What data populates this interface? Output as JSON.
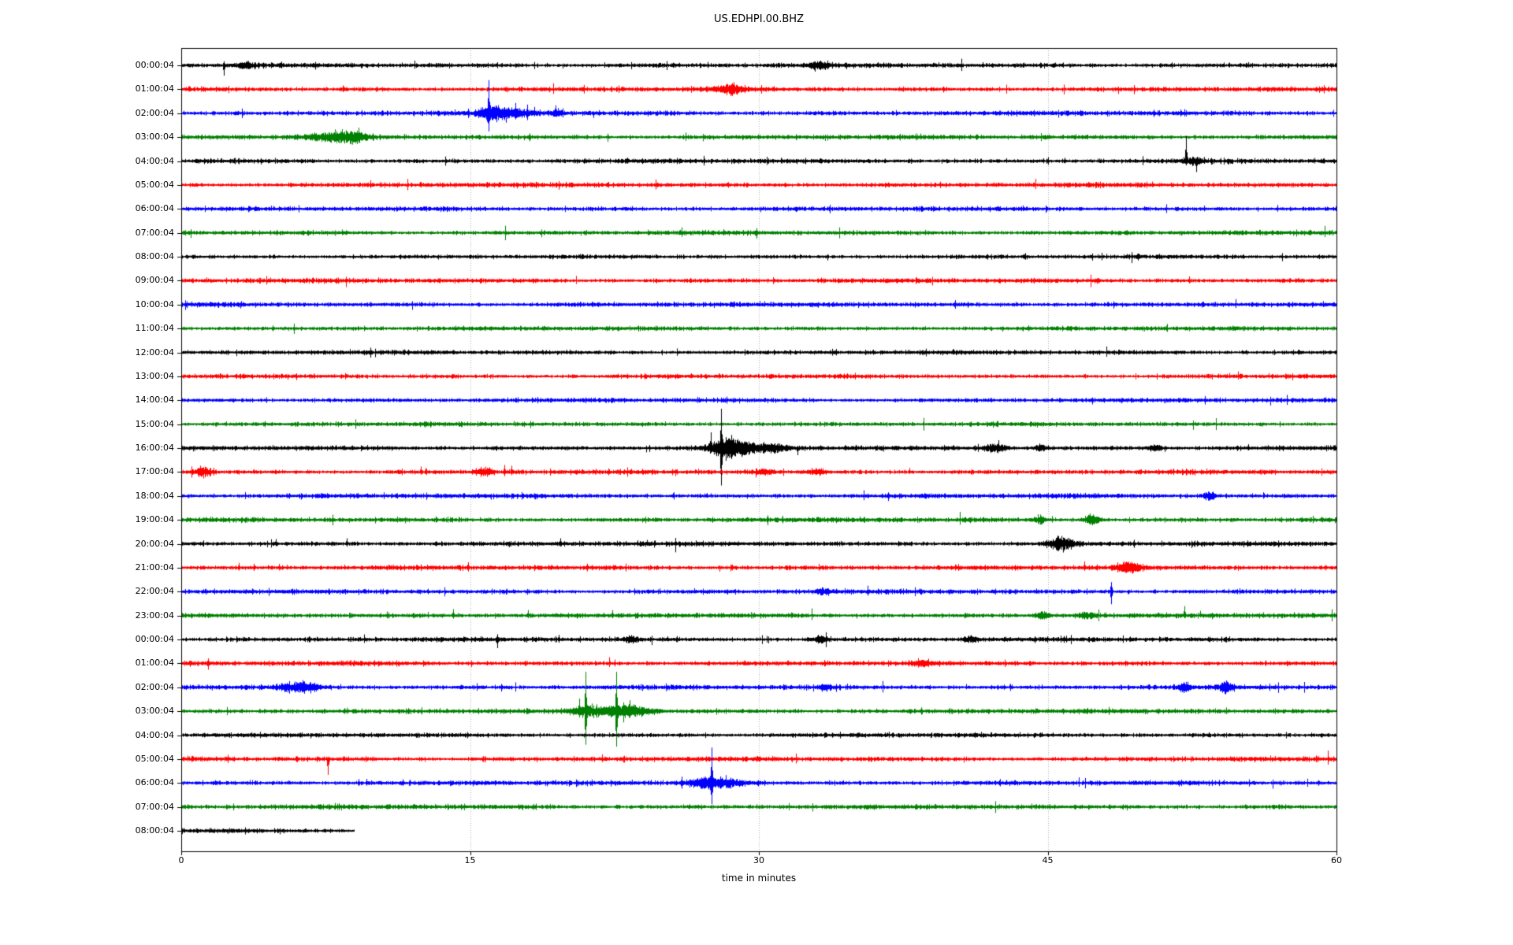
{
  "chart_data": {
    "type": "line",
    "subtype": "seismogram-helicorder",
    "title": "US.EDHPI.00.BHZ",
    "xlabel": "time in minutes",
    "x_range_minutes": [
      0,
      60
    ],
    "x_ticks": [
      0,
      15,
      30,
      45,
      60
    ],
    "x_tick_labels": [
      "0",
      "15",
      "30",
      "45",
      "60"
    ],
    "gridlines_minutes": [
      15,
      30,
      45
    ],
    "grid_color": "#ababab",
    "axis_color": "#000000",
    "trace_color_cycle": [
      "#000000",
      "#ff0000",
      "#0000ff",
      "#008000"
    ],
    "row_spacing_hours": 1,
    "rows": [
      {
        "label": "00:00:04",
        "color": "#000000",
        "noise": 3.0,
        "end_min": 60,
        "events": [
          {
            "t": "spike",
            "m": 2.2,
            "a": -13,
            "dn": 0.4
          },
          {
            "t": "burst",
            "m": 3.3,
            "a": 4,
            "d": 0.5
          },
          {
            "t": "burst",
            "m": 33.1,
            "a": 5,
            "d": 0.8
          },
          {
            "t": "spike",
            "m": 36.2,
            "a": 4,
            "dn": 0.5
          }
        ]
      },
      {
        "label": "01:00:04",
        "color": "#ff0000",
        "noise": 3.0,
        "end_min": 60,
        "events": [
          {
            "t": "burst",
            "m": 28.5,
            "a": 7,
            "d": 1.0
          },
          {
            "t": "spike",
            "m": 28.7,
            "a": 9,
            "dn": 0.6
          }
        ]
      },
      {
        "label": "02:00:04",
        "color": "#0000ff",
        "noise": 3.0,
        "end_min": 60,
        "events": [
          {
            "t": "spike",
            "m": 15.95,
            "a": 42,
            "dn": 0.55
          },
          {
            "t": "burst",
            "m": 16.1,
            "a": 10,
            "d": 0.8
          },
          {
            "t": "burst",
            "m": 17.2,
            "a": 6,
            "d": 1.5
          },
          {
            "t": "spike",
            "m": 16.85,
            "a": -12,
            "dn": 0.5
          },
          {
            "t": "spike",
            "m": 17.35,
            "a": 13,
            "dn": 0.6
          },
          {
            "t": "spike",
            "m": 17.95,
            "a": 11,
            "dn": 0.8
          },
          {
            "t": "spike",
            "m": 18.35,
            "a": 8,
            "dn": 0.5
          },
          {
            "t": "spike",
            "m": 19.45,
            "a": 10,
            "dn": 0.4
          },
          {
            "t": "burst",
            "m": 19.5,
            "a": 4,
            "d": 0.6
          },
          {
            "t": "spike",
            "m": 21.4,
            "a": -6,
            "dn": 0.4
          }
        ]
      },
      {
        "label": "03:00:04",
        "color": "#008000",
        "noise": 3.0,
        "end_min": 60,
        "events": [
          {
            "t": "burst",
            "m": 7.6,
            "a": 5,
            "d": 1.6
          },
          {
            "t": "burst",
            "m": 8.9,
            "a": 6,
            "d": 1.2
          },
          {
            "t": "spike",
            "m": 6.9,
            "a": 6,
            "dn": 0.5
          },
          {
            "t": "spike",
            "m": 8.35,
            "a": 10,
            "dn": 0.5
          },
          {
            "t": "spike",
            "m": 9.2,
            "a": 12,
            "dn": 0.6
          }
        ]
      },
      {
        "label": "04:00:04",
        "color": "#000000",
        "noise": 3.0,
        "end_min": 60,
        "events": [
          {
            "t": "spike",
            "m": 52.2,
            "a": 32,
            "dn": 0.15
          },
          {
            "t": "spike",
            "m": 52.7,
            "a": -14,
            "dn": 0.2
          },
          {
            "t": "burst",
            "m": 52.5,
            "a": 4,
            "d": 0.8
          }
        ]
      },
      {
        "label": "05:00:04",
        "color": "#ff0000",
        "noise": 3.0,
        "end_min": 60,
        "events": []
      },
      {
        "label": "06:00:04",
        "color": "#0000ff",
        "noise": 2.9,
        "end_min": 60,
        "events": []
      },
      {
        "label": "07:00:04",
        "color": "#008000",
        "noise": 2.9,
        "end_min": 60,
        "events": []
      },
      {
        "label": "08:00:04",
        "color": "#000000",
        "noise": 2.6,
        "end_min": 60,
        "events": []
      },
      {
        "label": "09:00:04",
        "color": "#ff0000",
        "noise": 3.0,
        "end_min": 60,
        "events": []
      },
      {
        "label": "10:00:04",
        "color": "#0000ff",
        "noise": 3.0,
        "end_min": 60,
        "events": []
      },
      {
        "label": "11:00:04",
        "color": "#008000",
        "noise": 2.8,
        "end_min": 60,
        "events": []
      },
      {
        "label": "12:00:04",
        "color": "#000000",
        "noise": 2.8,
        "end_min": 60,
        "events": []
      },
      {
        "label": "13:00:04",
        "color": "#ff0000",
        "noise": 2.8,
        "end_min": 60,
        "events": []
      },
      {
        "label": "14:00:04",
        "color": "#0000ff",
        "noise": 2.8,
        "end_min": 60,
        "events": []
      },
      {
        "label": "15:00:04",
        "color": "#008000",
        "noise": 2.8,
        "end_min": 60,
        "events": []
      },
      {
        "label": "16:00:04",
        "color": "#000000",
        "noise": 3.0,
        "end_min": 60,
        "events": [
          {
            "t": "spike",
            "m": 27.5,
            "a": 20,
            "dn": 0.3
          },
          {
            "t": "spike",
            "m": 28.05,
            "a": 50,
            "dn": 0.95
          },
          {
            "t": "burst",
            "m": 28.3,
            "a": 12,
            "d": 1.2
          },
          {
            "t": "spike",
            "m": 28.6,
            "a": 10,
            "dn": 0.8
          },
          {
            "t": "burst",
            "m": 29.3,
            "a": 6,
            "d": 2.0
          },
          {
            "t": "burst",
            "m": 30.9,
            "a": 4,
            "d": 0.8
          },
          {
            "t": "spike",
            "m": 32.0,
            "a": -9,
            "dn": 0.3
          },
          {
            "t": "burst",
            "m": 42.3,
            "a": 6,
            "d": 0.8
          },
          {
            "t": "spike",
            "m": 42.45,
            "a": 10,
            "dn": 0.4
          },
          {
            "t": "burst",
            "m": 44.6,
            "a": 4,
            "d": 0.5
          },
          {
            "t": "burst",
            "m": 50.6,
            "a": 4,
            "d": 0.6
          },
          {
            "t": "spike",
            "m": 55.4,
            "a": 5,
            "dn": 0.5
          }
        ]
      },
      {
        "label": "17:00:04",
        "color": "#ff0000",
        "noise": 3.0,
        "end_min": 60,
        "events": [
          {
            "t": "burst",
            "m": 1.1,
            "a": 7,
            "d": 0.6
          },
          {
            "t": "spike",
            "m": 1.0,
            "a": 8,
            "dn": 0.6
          },
          {
            "t": "spike",
            "m": 12.45,
            "a": 7,
            "dn": 0.5
          },
          {
            "t": "spike",
            "m": 12.7,
            "a": 5,
            "dn": 0.5
          },
          {
            "t": "burst",
            "m": 15.7,
            "a": 6,
            "d": 0.6
          },
          {
            "t": "spike",
            "m": 16.8,
            "a": 9,
            "dn": 0.6
          },
          {
            "t": "spike",
            "m": 17.15,
            "a": 8,
            "dn": 0.5
          },
          {
            "t": "burst",
            "m": 30.3,
            "a": 4,
            "d": 0.6
          },
          {
            "t": "burst",
            "m": 33.0,
            "a": 3.5,
            "d": 0.6
          },
          {
            "t": "spike",
            "m": 37.8,
            "a": 5,
            "dn": 0.5
          }
        ]
      },
      {
        "label": "18:00:04",
        "color": "#0000ff",
        "noise": 3.0,
        "end_min": 60,
        "events": [
          {
            "t": "burst",
            "m": 53.4,
            "a": 6,
            "d": 0.4
          }
        ]
      },
      {
        "label": "19:00:04",
        "color": "#008000",
        "noise": 3.0,
        "end_min": 60,
        "events": [
          {
            "t": "burst",
            "m": 44.6,
            "a": 6,
            "d": 0.4
          },
          {
            "t": "burst",
            "m": 47.3,
            "a": 8,
            "d": 0.5
          }
        ]
      },
      {
        "label": "20:00:04",
        "color": "#000000",
        "noise": 3.0,
        "end_min": 60,
        "events": [
          {
            "t": "spike",
            "m": 4.9,
            "a": 6,
            "dn": 0.5
          },
          {
            "t": "spike",
            "m": 8.6,
            "a": 7,
            "dn": 0.5
          },
          {
            "t": "spike",
            "m": 19.7,
            "a": 7,
            "dn": 0.5
          },
          {
            "t": "spike",
            "m": 24.2,
            "a": 5,
            "dn": 0.5
          },
          {
            "t": "burst",
            "m": 45.7,
            "a": 10,
            "d": 0.9
          }
        ]
      },
      {
        "label": "21:00:04",
        "color": "#ff0000",
        "noise": 3.0,
        "end_min": 60,
        "events": [
          {
            "t": "spike",
            "m": 3.0,
            "a": 6,
            "dn": 0.6
          },
          {
            "t": "spike",
            "m": 14.9,
            "a": 7,
            "dn": 0.7
          },
          {
            "t": "spike",
            "m": 46.9,
            "a": 8,
            "dn": 0.5
          },
          {
            "t": "burst",
            "m": 49.2,
            "a": 7,
            "d": 0.9
          }
        ]
      },
      {
        "label": "22:00:04",
        "color": "#0000ff",
        "noise": 3.0,
        "end_min": 60,
        "events": [
          {
            "t": "burst",
            "m": 33.3,
            "a": 4,
            "d": 0.4
          },
          {
            "t": "spike",
            "m": 48.3,
            "a": -16,
            "dn": 0.75
          }
        ]
      },
      {
        "label": "23:00:04",
        "color": "#008000",
        "noise": 3.0,
        "end_min": 60,
        "events": [
          {
            "t": "spike",
            "m": 14.1,
            "a": 8,
            "dn": 0.5
          },
          {
            "t": "spike",
            "m": 18.0,
            "a": 7,
            "dn": 0.5
          },
          {
            "t": "spike",
            "m": 22.4,
            "a": 7,
            "dn": 0.5
          },
          {
            "t": "burst",
            "m": 44.7,
            "a": 5,
            "d": 0.5
          },
          {
            "t": "burst",
            "m": 47.0,
            "a": 4,
            "d": 0.7
          },
          {
            "t": "spike",
            "m": 52.1,
            "a": 12,
            "dn": 0.3
          },
          {
            "t": "spike",
            "m": 52.9,
            "a": 6,
            "dn": 0.4
          }
        ]
      },
      {
        "label": "00:00:04",
        "color": "#000000",
        "noise": 3.0,
        "end_min": 60,
        "events": [
          {
            "t": "spike",
            "m": 16.4,
            "a": -11,
            "dn": 0.6
          },
          {
            "t": "spike",
            "m": 19.6,
            "a": 6,
            "dn": 0.7
          },
          {
            "t": "burst",
            "m": 23.3,
            "a": 4,
            "d": 0.5
          },
          {
            "t": "burst",
            "m": 33.2,
            "a": 4,
            "d": 0.6
          },
          {
            "t": "burst",
            "m": 41.0,
            "a": 4,
            "d": 0.5
          }
        ]
      },
      {
        "label": "01:00:04",
        "color": "#ff0000",
        "noise": 3.0,
        "end_min": 60,
        "events": [
          {
            "t": "spike",
            "m": 1.4,
            "a": -8,
            "dn": 0.8
          },
          {
            "t": "burst",
            "m": 38.5,
            "a": 4,
            "d": 0.6
          }
        ]
      },
      {
        "label": "02:00:04",
        "color": "#0000ff",
        "noise": 3.0,
        "end_min": 60,
        "events": [
          {
            "t": "burst",
            "m": 6.1,
            "a": 8,
            "d": 1.4
          },
          {
            "t": "spike",
            "m": 6.3,
            "a": 9,
            "dn": 0.6
          },
          {
            "t": "burst",
            "m": 33.4,
            "a": 4,
            "d": 0.4
          },
          {
            "t": "burst",
            "m": 52.1,
            "a": 6,
            "d": 0.5
          },
          {
            "t": "burst",
            "m": 54.2,
            "a": 6,
            "d": 0.5
          }
        ]
      },
      {
        "label": "03:00:04",
        "color": "#008000",
        "noise": 3.0,
        "end_min": 60,
        "events": [
          {
            "t": "burst",
            "m": 21.2,
            "a": 8,
            "d": 1.2
          },
          {
            "t": "spike",
            "m": 20.65,
            "a": 16,
            "dn": 0.5
          },
          {
            "t": "spike",
            "m": 21.0,
            "a": 50,
            "dn": 0.85
          },
          {
            "t": "spike",
            "m": 22.6,
            "a": 50,
            "dn": 0.9
          },
          {
            "t": "burst",
            "m": 22.9,
            "a": 9,
            "d": 1.0
          },
          {
            "t": "spike",
            "m": 23.3,
            "a": 14,
            "dn": 0.6
          },
          {
            "t": "burst",
            "m": 23.8,
            "a": 5,
            "d": 1.2
          }
        ]
      },
      {
        "label": "04:00:04",
        "color": "#000000",
        "noise": 2.8,
        "end_min": 60,
        "events": []
      },
      {
        "label": "05:00:04",
        "color": "#ff0000",
        "noise": 3.0,
        "end_min": 60,
        "events": [
          {
            "t": "spike",
            "m": 7.6,
            "a": -20,
            "dn": 0.15
          }
        ]
      },
      {
        "label": "06:00:04",
        "color": "#0000ff",
        "noise": 3.0,
        "end_min": 60,
        "events": [
          {
            "t": "spike",
            "m": 24.4,
            "a": 4,
            "dn": 0.5
          },
          {
            "t": "spike",
            "m": 26.0,
            "a": 8,
            "dn": 0.9
          },
          {
            "t": "burst",
            "m": 27.3,
            "a": 9,
            "d": 1.2
          },
          {
            "t": "spike",
            "m": 27.55,
            "a": 45,
            "dn": 0.6
          },
          {
            "t": "spike",
            "m": 28.3,
            "a": 10,
            "dn": 0.5
          },
          {
            "t": "burst",
            "m": 28.6,
            "a": 5,
            "d": 1.2
          }
        ]
      },
      {
        "label": "07:00:04",
        "color": "#008000",
        "noise": 3.0,
        "end_min": 60,
        "events": []
      },
      {
        "label": "08:00:04",
        "color": "#000000",
        "noise": 2.7,
        "end_min": 9.0,
        "events": []
      }
    ]
  }
}
